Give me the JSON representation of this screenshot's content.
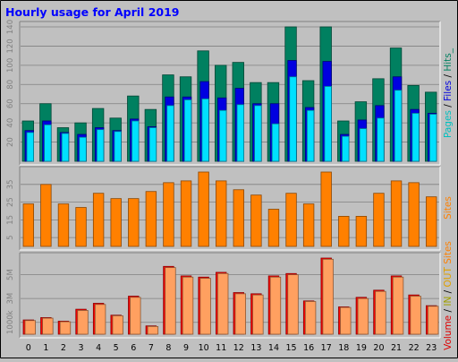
{
  "chart_data": [
    {
      "type": "bar",
      "title": "Hourly usage for April 2019",
      "categories": [
        "0",
        "1",
        "2",
        "3",
        "4",
        "5",
        "6",
        "7",
        "8",
        "9",
        "10",
        "11",
        "12",
        "13",
        "14",
        "15",
        "16",
        "17",
        "18",
        "19",
        "20",
        "21",
        "22",
        "23"
      ],
      "ylim": [
        0,
        140
      ],
      "yticks": [
        "20",
        "40",
        "60",
        "80",
        "100",
        "120",
        "140"
      ],
      "side_label_parts": [
        "Pages",
        " / ",
        "Files",
        " / ",
        "Hits_"
      ],
      "side_label_colors": [
        "#00c0c0",
        "#000000",
        "#0000e0",
        "#000000",
        "#008060"
      ],
      "series": [
        {
          "name": "Hits",
          "color": "#008060",
          "values": [
            42,
            60,
            35,
            40,
            55,
            45,
            68,
            54,
            90,
            88,
            115,
            100,
            103,
            82,
            82,
            140,
            84,
            140,
            42,
            62,
            86,
            118,
            79,
            72
          ]
        },
        {
          "name": "Files",
          "color": "#0000e0",
          "values": [
            32,
            42,
            30,
            28,
            35,
            32,
            44,
            36,
            67,
            67,
            83,
            66,
            76,
            60,
            60,
            105,
            56,
            104,
            28,
            43,
            58,
            88,
            54,
            50
          ]
        },
        {
          "name": "Pages",
          "color": "#00e0ff",
          "values": [
            30,
            38,
            29,
            25,
            33,
            31,
            42,
            35,
            58,
            64,
            65,
            53,
            59,
            58,
            39,
            88,
            53,
            78,
            26,
            34,
            45,
            74,
            50,
            49
          ]
        }
      ]
    },
    {
      "type": "bar",
      "categories": [
        "0",
        "1",
        "2",
        "3",
        "4",
        "5",
        "6",
        "7",
        "8",
        "9",
        "10",
        "11",
        "12",
        "13",
        "14",
        "15",
        "16",
        "17",
        "18",
        "19",
        "20",
        "21",
        "22",
        "23"
      ],
      "ylim": [
        0,
        42
      ],
      "yticks": [
        "5",
        "15",
        "25",
        "35"
      ],
      "side_label": "Sites",
      "side_label_color": "#ff8000",
      "series": [
        {
          "name": "Sites",
          "color": "#ff8000",
          "values": [
            24,
            35,
            24,
            22,
            30,
            27,
            27,
            31,
            36,
            37,
            42,
            37,
            32,
            29,
            21,
            30,
            24,
            42,
            17,
            17,
            30,
            37,
            36,
            28
          ]
        }
      ]
    },
    {
      "type": "bar",
      "categories": [
        "0",
        "1",
        "2",
        "3",
        "4",
        "5",
        "6",
        "7",
        "8",
        "9",
        "10",
        "11",
        "12",
        "13",
        "14",
        "15",
        "16",
        "17",
        "18",
        "19",
        "20",
        "21",
        "22",
        "23"
      ],
      "ylim": [
        0,
        6400
      ],
      "yticks": [
        "1000k",
        "3M",
        "5M"
      ],
      "side_label_parts": [
        "Volume",
        " / ",
        "IN",
        " / ",
        "OUT",
        " ",
        "Sites"
      ],
      "side_label_colors": [
        "#e00000",
        "#000000",
        "#a0a000",
        "#000000",
        "#e0a000",
        "#000000",
        "#ff8000"
      ],
      "series": [
        {
          "name": "Volume",
          "color": "#ff0000",
          "values": [
            1200,
            1400,
            1100,
            2100,
            2600,
            1600,
            3200,
            700,
            5700,
            4900,
            4800,
            5200,
            3500,
            3400,
            4900,
            5100,
            2800,
            6400,
            2300,
            3100,
            3700,
            4900,
            3300,
            2400
          ]
        },
        {
          "name": "OUT",
          "color": "#ffa060",
          "values": [
            1150,
            1350,
            1050,
            2000,
            2500,
            1550,
            3100,
            650,
            5600,
            4800,
            4700,
            5100,
            3400,
            3300,
            4800,
            5000,
            2750,
            6300,
            2250,
            3000,
            3600,
            4800,
            3200,
            2350
          ]
        }
      ]
    }
  ]
}
